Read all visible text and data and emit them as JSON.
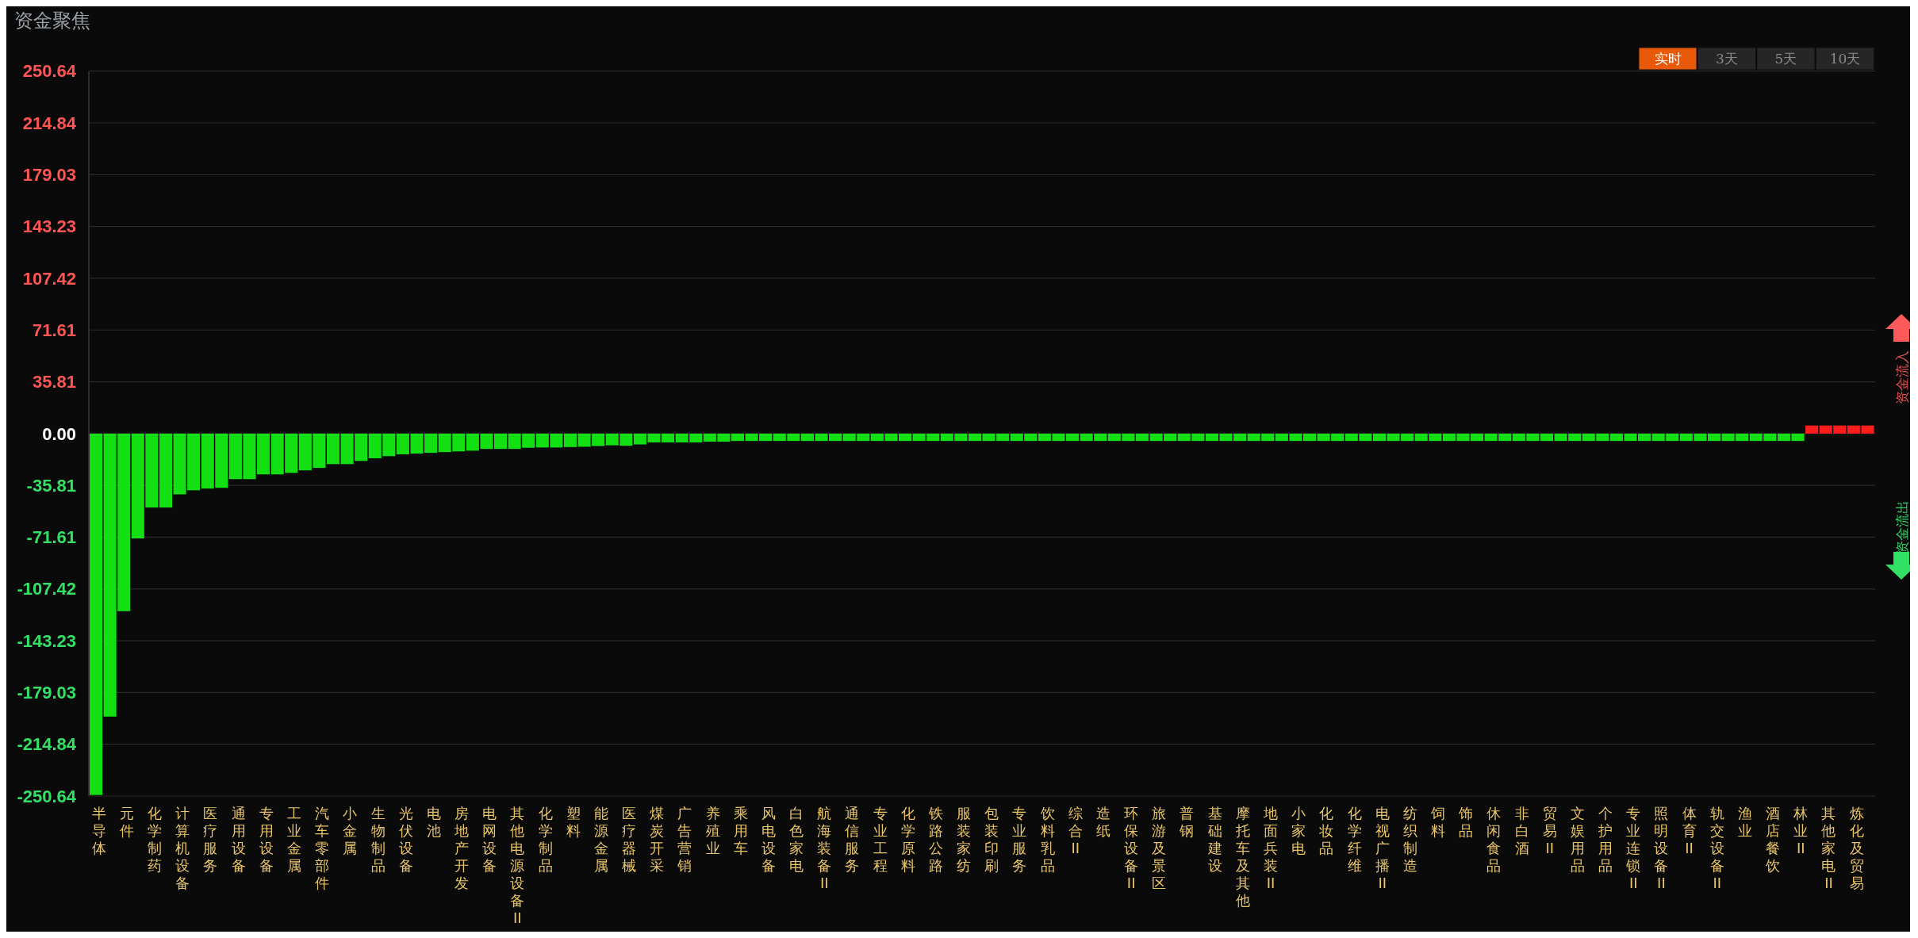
{
  "chart_data": {
    "type": "bar",
    "title": "资金聚焦",
    "categories": [
      "半导体",
      null,
      "元件",
      null,
      "化学制药",
      null,
      "计算机设备",
      null,
      "医疗服务",
      null,
      "通用设备",
      null,
      "专用设备",
      null,
      "工业金属",
      null,
      "汽车零部件",
      null,
      "小金属",
      null,
      "生物制品",
      null,
      "光伏设备",
      null,
      "电池",
      null,
      "房地产开发",
      null,
      "电网设备",
      null,
      "其他电源设备II",
      null,
      "化学制品",
      null,
      "塑料",
      null,
      "能源金属",
      null,
      "医疗器械",
      null,
      "煤炭开采",
      null,
      "广告营销",
      null,
      "养殖业",
      null,
      "乘用车",
      null,
      "风电设备",
      null,
      "白色家电",
      null,
      "航海装备II",
      null,
      "通信服务",
      null,
      "专业工程",
      null,
      "化学原料",
      null,
      "铁路公路",
      null,
      "服装家纺",
      null,
      "包装印刷",
      null,
      "专业服务",
      null,
      "饮料乳品",
      null,
      "综合II",
      null,
      "造纸",
      null,
      "环保设备II",
      null,
      "旅游及景区",
      null,
      "普钢",
      null,
      "基础建设",
      null,
      "摩托车及其他",
      null,
      "地面兵装II",
      null,
      "小家电",
      null,
      "化妆品",
      null,
      "化学纤维",
      null,
      "电视广播II",
      null,
      "纺织制造",
      null,
      "饲料",
      null,
      "饰品",
      null,
      "休闲食品",
      null,
      "非白酒",
      null,
      "贸易II",
      null,
      "文娱用品",
      null,
      "个护用品",
      null,
      "专业连锁II",
      null,
      "照明设备II",
      null,
      "体育II",
      null,
      "轨交设备II",
      null,
      "渔业",
      null,
      "酒店餐饮",
      null,
      "林业II",
      null,
      "其他家电II",
      null,
      "炼化及贸易",
      null
    ],
    "values": [
      -249.9,
      -195.7,
      -122.8,
      -72.5,
      -51.1,
      -51.1,
      -42.0,
      -39.2,
      -38.0,
      -37.5,
      -31.5,
      -31.5,
      -28.2,
      -28.2,
      -27.2,
      -25.4,
      -23.7,
      -21.1,
      -21.1,
      -18.9,
      -17.1,
      -15.6,
      -14.3,
      -13.8,
      -13.3,
      -12.8,
      -12.3,
      -11.8,
      -10.6,
      -10.6,
      -10.6,
      -9.8,
      -9.6,
      -9.6,
      -9.3,
      -9.1,
      -8.6,
      -8.1,
      -8.4,
      -7.5,
      -6.1,
      -6.1,
      -6.1,
      -6.1,
      -5.6,
      -5.6,
      -5.1,
      -5.1,
      -5.1,
      -5.1,
      -5.1,
      -5.1,
      -5.1,
      -5.1,
      -5.1,
      -5.1,
      -5.1,
      -5.1,
      -5.1,
      -5.1,
      -5.1,
      -5.1,
      -5.1,
      -5.1,
      -5.1,
      -5.1,
      -5.1,
      -5.1,
      -5.1,
      -5.1,
      -5.1,
      -5.1,
      -5.1,
      -5.1,
      -5.1,
      -5.1,
      -5.1,
      -5.1,
      -5.1,
      -5.1,
      -5.1,
      -5.1,
      -5.1,
      -5.1,
      -5.1,
      -5.1,
      -5.1,
      -5.1,
      -5.1,
      -5.1,
      -5.1,
      -5.1,
      -5.1,
      -5.1,
      -5.1,
      -5.1,
      -5.1,
      -5.1,
      -5.1,
      -5.1,
      -5.1,
      -5.1,
      -5.1,
      -5.1,
      -5.1,
      -5.1,
      -5.1,
      -5.1,
      -5.1,
      -5.1,
      -5.1,
      -5.1,
      -5.1,
      -5.1,
      -5.1,
      -5.1,
      -5.1,
      -5.1,
      -5.1,
      -5.1,
      -5.1,
      -5.1,
      -5.1,
      5.6,
      5.6,
      5.6,
      5.6,
      5.6
    ],
    "colors": [
      "#12e012",
      "#12e012",
      "#12e012",
      "#12e012",
      "#12e012",
      "#12e012",
      "#12e012",
      "#12e012",
      "#12e012",
      "#12e012",
      "#12e012",
      "#12e012",
      "#12e012",
      "#12e012",
      "#12e012",
      "#12e012",
      "#12e012",
      "#12e012",
      "#12e012",
      "#12e012",
      "#12e012",
      "#12e012",
      "#12e012",
      "#12e012",
      "#12e012",
      "#12e012",
      "#12e012",
      "#12e012",
      "#12e012",
      "#12e012",
      "#12e012",
      "#12e012",
      "#12e012",
      "#12e012",
      "#12e012",
      "#12e012",
      "#12e012",
      "#12e012",
      "#12e012",
      "#12e012",
      "#12e012",
      "#12e012",
      "#12e012",
      "#12e012",
      "#12e012",
      "#12e012",
      "#12e012",
      "#12e012",
      "#12e012",
      "#12e012",
      "#12e012",
      "#12e012",
      "#12e012",
      "#12e012",
      "#12e012",
      "#12e012",
      "#12e012",
      "#12e012",
      "#12e012",
      "#12e012",
      "#12e012",
      "#12e012",
      "#12e012",
      "#12e012",
      "#12e012",
      "#12e012",
      "#12e012",
      "#12e012",
      "#12e012",
      "#12e012",
      "#12e012",
      "#12e012",
      "#12e012",
      "#12e012",
      "#12e012",
      "#12e012",
      "#12e012",
      "#12e012",
      "#12e012",
      "#12e012",
      "#12e012",
      "#12e012",
      "#12e012",
      "#12e012",
      "#12e012",
      "#12e012",
      "#12e012",
      "#12e012",
      "#12e012",
      "#12e012",
      "#12e012",
      "#12e012",
      "#12e012",
      "#12e012",
      "#12e012",
      "#12e012",
      "#12e012",
      "#12e012",
      "#12e012",
      "#12e012",
      "#12e012",
      "#12e012",
      "#12e012",
      "#12e012",
      "#12e012",
      "#12e012",
      "#12e012",
      "#12e012",
      "#12e012",
      "#12e012",
      "#12e012",
      "#12e012",
      "#12e012",
      "#12e012",
      "#12e012",
      "#12e012",
      "#12e012",
      "#12e012",
      "#12e012",
      "#12e012",
      "#12e012",
      "#12e012",
      "#12e012",
      "#ff1c1c",
      "#ff1c1c",
      "#ff1c1c",
      "#ff1c1c",
      "#ff1c1c"
    ],
    "ylim": [
      -250.64,
      250.64
    ],
    "yticks": [
      250.64,
      214.84,
      179.03,
      143.23,
      107.42,
      71.61,
      35.81,
      {
        "value": 0,
        "label": "0.00"
      },
      -35.81,
      -71.61,
      -107.42,
      -143.23,
      -179.03,
      -214.84,
      -250.64
    ],
    "grid": "y",
    "annotations": [
      "实时",
      "3天",
      "5天",
      "10天",
      "资金流入",
      "资金流出"
    ]
  }
}
